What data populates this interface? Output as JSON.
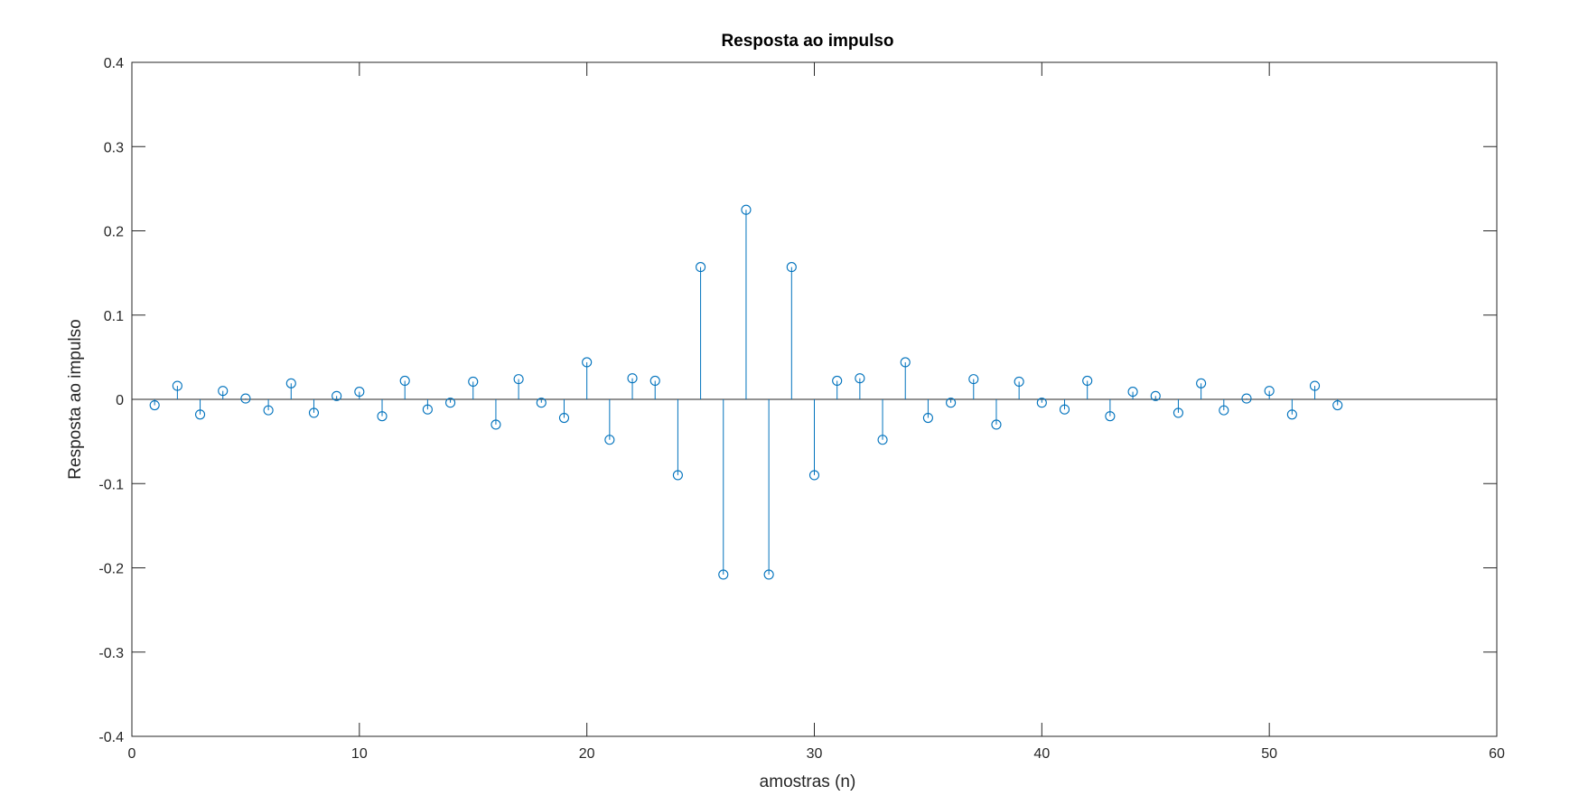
{
  "chart_data": {
    "type": "stem",
    "title": "Resposta ao impulso",
    "xlabel": "amostras (n)",
    "ylabel": "Resposta ao impulso",
    "xlim": [
      0,
      60
    ],
    "ylim": [
      -0.4,
      0.4
    ],
    "xticks": [
      0,
      10,
      20,
      30,
      40,
      50,
      60
    ],
    "yticks": [
      -0.4,
      -0.3,
      -0.2,
      -0.1,
      0,
      0.1,
      0.2,
      0.3,
      0.4
    ],
    "xtick_labels": [
      "0",
      "10",
      "20",
      "30",
      "40",
      "50",
      "60"
    ],
    "ytick_labels": [
      "-0.4",
      "-0.3",
      "-0.2",
      "-0.1",
      "0",
      "0.1",
      "0.2",
      "0.3",
      "0.4"
    ],
    "grid": false,
    "color": "#0072bd",
    "x": [
      1,
      2,
      3,
      4,
      5,
      6,
      7,
      8,
      9,
      10,
      11,
      12,
      13,
      14,
      15,
      16,
      17,
      18,
      19,
      20,
      21,
      22,
      23,
      24,
      25,
      26,
      27,
      28,
      29,
      30,
      31,
      32,
      33,
      34,
      35,
      36,
      37,
      38,
      39,
      40,
      41,
      42,
      43,
      44,
      45,
      46,
      47,
      48,
      49,
      50,
      51,
      52,
      53
    ],
    "values": [
      -0.007,
      0.016,
      -0.018,
      0.01,
      0.001,
      -0.013,
      0.019,
      -0.016,
      0.004,
      0.009,
      -0.02,
      0.022,
      -0.012,
      -0.004,
      0.021,
      -0.03,
      0.024,
      -0.004,
      -0.022,
      0.044,
      -0.048,
      0.025,
      0.022,
      -0.09,
      0.157,
      -0.208,
      0.225,
      -0.208,
      0.157,
      -0.09,
      0.022,
      0.025,
      -0.048,
      0.044,
      -0.022,
      -0.004,
      0.024,
      -0.03,
      0.021,
      -0.004,
      -0.012,
      0.022,
      -0.02,
      0.009,
      0.004,
      -0.016,
      0.019,
      -0.013,
      0.001,
      0.01,
      -0.018,
      0.016,
      -0.007
    ]
  }
}
